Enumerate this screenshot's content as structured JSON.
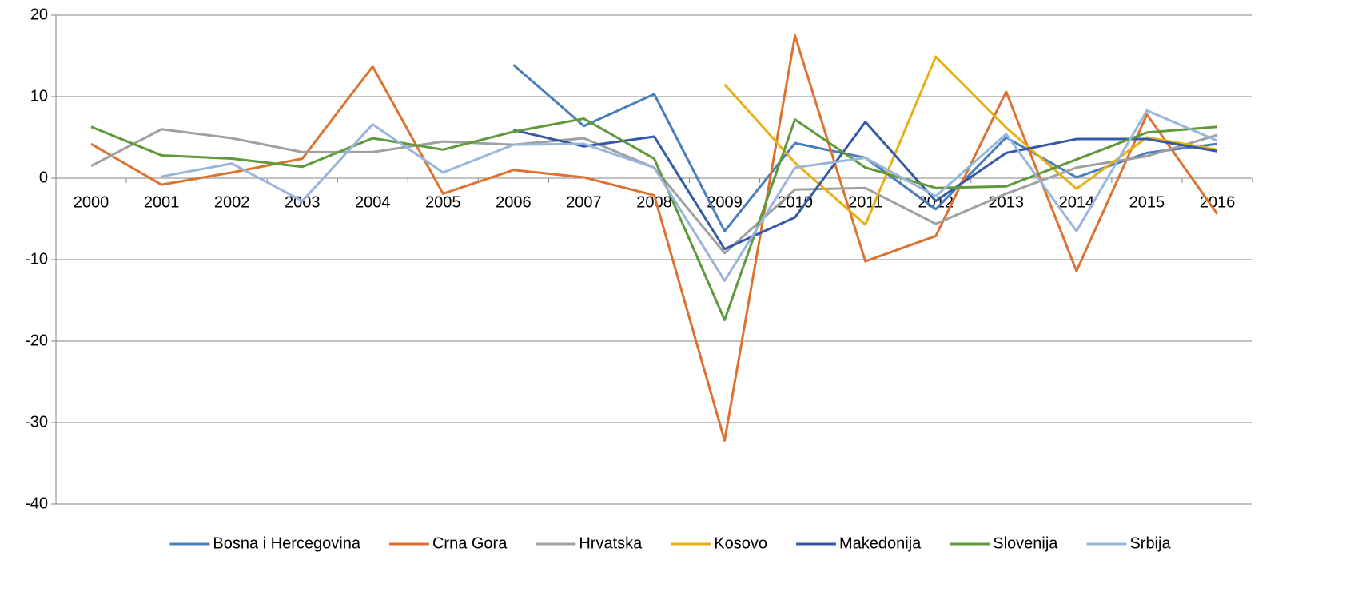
{
  "chart_data": {
    "type": "line",
    "categories": [
      "2000",
      "2001",
      "2002",
      "2003",
      "2004",
      "2005",
      "2006",
      "2007",
      "2008",
      "2009",
      "2010",
      "2011",
      "2012",
      "2013",
      "2014",
      "2015",
      "2016"
    ],
    "ylim": [
      -40,
      20
    ],
    "yticks": [
      20,
      10,
      0,
      -10,
      -20,
      -30,
      -40
    ],
    "grid": true,
    "legend": "bottom",
    "series": [
      {
        "name": "Bosna i Hercegovina",
        "color": "#4a7ebb",
        "values": [
          null,
          null,
          null,
          null,
          null,
          null,
          13.9,
          6.4,
          10.3,
          -6.5,
          4.3,
          2.5,
          -3.8,
          5.0,
          0.1,
          3.1,
          4.2
        ]
      },
      {
        "name": "Crna Gora",
        "color": "#dd7230",
        "values": [
          4.2,
          -0.8,
          0.7,
          2.4,
          13.7,
          -1.9,
          1.0,
          0.1,
          -2.1,
          -32.2,
          17.5,
          -10.2,
          -7.1,
          10.6,
          -11.4,
          7.8,
          -4.4
        ]
      },
      {
        "name": "Hrvatska",
        "color": "#a0a0a0",
        "values": [
          1.5,
          6.0,
          4.9,
          3.2,
          3.2,
          4.5,
          4.1,
          4.9,
          1.3,
          -9.2,
          -1.4,
          -1.2,
          -5.6,
          -1.9,
          1.3,
          2.7,
          5.3
        ]
      },
      {
        "name": "Kosovo",
        "color": "#e8b014",
        "values": [
          null,
          null,
          null,
          null,
          null,
          null,
          null,
          null,
          null,
          11.5,
          1.9,
          -5.7,
          14.9,
          6.2,
          -1.3,
          5.0,
          3.5
        ]
      },
      {
        "name": "Makedonija",
        "color": "#3559a6",
        "values": [
          null,
          null,
          null,
          null,
          null,
          null,
          5.9,
          3.9,
          5.1,
          -8.7,
          -4.8,
          6.9,
          -2.8,
          3.1,
          4.8,
          4.8,
          3.3
        ]
      },
      {
        "name": "Slovenija",
        "color": "#5e9a3a",
        "values": [
          6.3,
          2.8,
          2.4,
          1.4,
          4.9,
          3.5,
          5.7,
          7.3,
          2.4,
          -17.4,
          7.2,
          1.3,
          -1.2,
          -1.0,
          2.3,
          5.6,
          6.3
        ]
      },
      {
        "name": "Srbija",
        "color": "#98b6dc",
        "values": [
          null,
          0.2,
          1.8,
          -2.8,
          6.6,
          0.7,
          4.1,
          4.2,
          1.3,
          -12.6,
          1.3,
          2.5,
          -2.2,
          5.4,
          -6.5,
          8.3,
          4.6
        ]
      }
    ]
  }
}
